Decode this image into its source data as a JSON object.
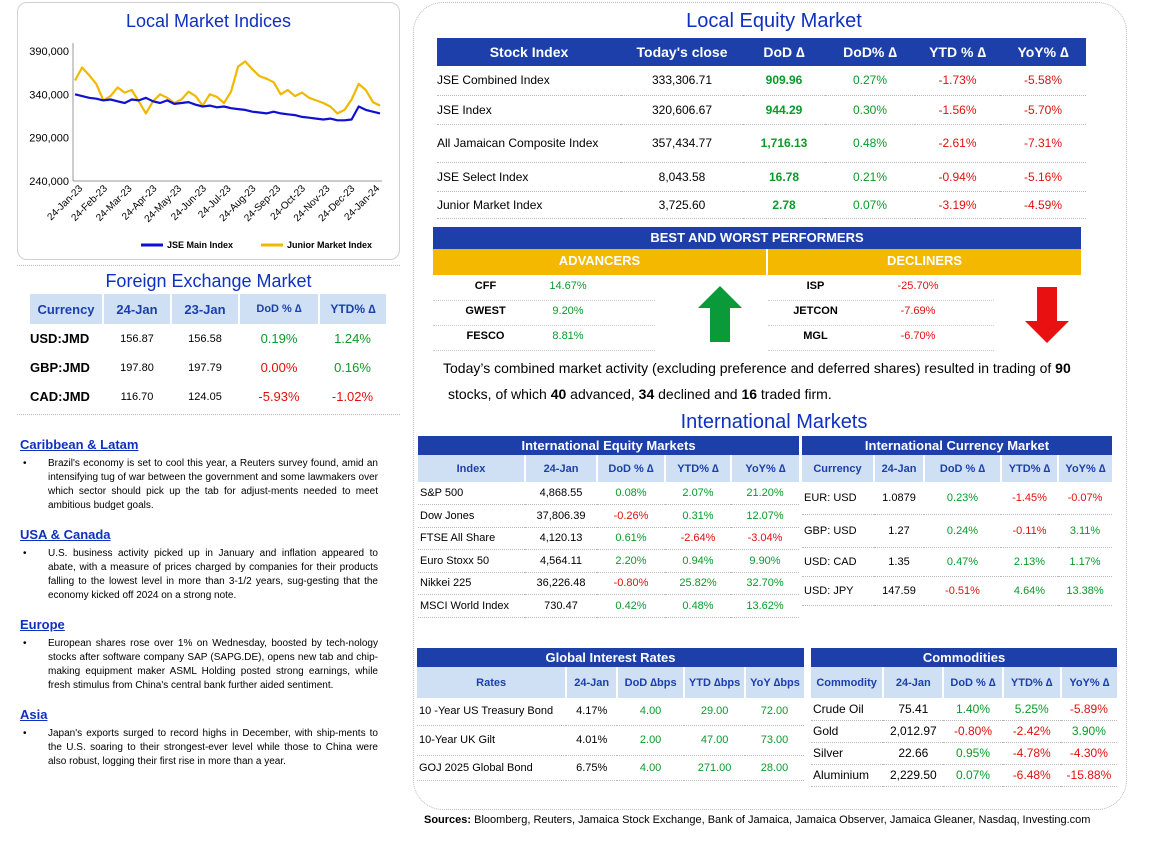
{
  "indices_chart": {
    "title": "Local Market Indices",
    "chart_data": {
      "type": "line",
      "title": "Local Market Indices",
      "yticks": [
        "390,000",
        "340,000",
        "290,000",
        "240,000"
      ],
      "ylim": [
        240000,
        390000
      ],
      "xticks": [
        "24-Jan-23",
        "24-Feb-23",
        "24-Mar-23",
        "24-Apr-23",
        "24-May-23",
        "24-Jun-23",
        "24-Jul-23",
        "24-Aug-23",
        "24-Sep-23",
        "24-Oct-23",
        "24-Nov-23",
        "24-Dec-23",
        "24-Jan-24"
      ],
      "series": [
        {
          "name": "JSE Main Index",
          "color": "#1010d0",
          "values": [
            340000,
            338000,
            336000,
            335000,
            333000,
            334000,
            332000,
            330000,
            334000,
            333000,
            336000,
            332000,
            330000,
            333000,
            329000,
            330000,
            331000,
            328000,
            326000,
            327000,
            325000,
            326000,
            324000,
            323000,
            322000,
            320000,
            319000,
            318000,
            320000,
            318000,
            317000,
            316000,
            314000,
            313000,
            312000,
            311000,
            312000,
            310000,
            310000,
            311000,
            326000,
            322000,
            320000,
            318000
          ]
        },
        {
          "name": "Junior Market Index",
          "color": "#f0b800",
          "values": [
            356000,
            371000,
            362000,
            352000,
            333000,
            338000,
            348000,
            342000,
            345000,
            332000,
            318000,
            332000,
            340000,
            336000,
            330000,
            334000,
            343000,
            338000,
            327000,
            340000,
            337000,
            330000,
            343000,
            372000,
            378000,
            369000,
            361000,
            358000,
            354000,
            340000,
            345000,
            338000,
            342000,
            336000,
            333000,
            330000,
            326000,
            318000,
            322000,
            334000,
            352000,
            345000,
            331000,
            327000
          ]
        }
      ],
      "legend": "bottom"
    }
  },
  "fx": {
    "title": "Foreign Exchange Market",
    "headers": [
      "Currency",
      "24-Jan",
      "23-Jan",
      "DoD % ∆",
      "YTD% ∆"
    ],
    "rows": [
      [
        "USD:JMD",
        "156.87",
        "156.58",
        "0.19%",
        "1.24%"
      ],
      [
        "GBP:JMD",
        "197.80",
        "197.79",
        "0.00%",
        "0.16%"
      ],
      [
        "CAD:JMD",
        "116.70",
        "124.05",
        "-5.93%",
        "-1.02%"
      ]
    ]
  },
  "news": [
    {
      "heading": "Caribbean & Latam",
      "text": "Brazil's economy is set to cool this year, a Reuters survey found, amid an intensifying tug of war between the government and some lawmakers over which sector should pick up the tab for adjust-ments needed to meet ambitious budget goals."
    },
    {
      "heading": "USA & Canada",
      "text": "U.S. business activity picked up in January and inflation appeared to abate, with a measure of prices charged by companies for their products falling to the lowest level in more than 3-1/2 years, sug-gesting that the economy kicked off 2024 on a strong note."
    },
    {
      "heading": "Europe",
      "text": "European shares rose over 1% on Wednesday, boosted by tech-nology stocks after software company SAP (SAPG.DE), opens new tab and chip-making equipment maker ASML Holding posted strong earnings, while fresh stimulus from China's central bank further aided sentiment."
    },
    {
      "heading": "Asia",
      "text": "Japan's exports surged to record highs in December, with ship-ments to the U.S. soaring to their strongest-ever level while those to China were also robust, logging their first rise in more than a year."
    }
  ],
  "bullet": "•",
  "equity": {
    "title": "Local Equity Market",
    "headers": [
      "Stock Index",
      "Today's close",
      "DoD  ∆",
      "DoD% ∆",
      "YTD % ∆",
      "YoY% ∆"
    ],
    "rows": [
      [
        "JSE Combined Index",
        "333,306.71",
        "909.96",
        "0.27%",
        "-1.73%",
        "-5.58%"
      ],
      [
        "JSE Index",
        "320,606.67",
        "944.29",
        "0.30%",
        "-1.56%",
        "-5.70%"
      ],
      [
        "All Jamaican Composite Index",
        "357,434.77",
        "1,716.13",
        "0.48%",
        "-2.61%",
        "-7.31%"
      ],
      [
        "JSE Select Index",
        "8,043.58",
        "16.78",
        "0.21%",
        "-0.94%",
        "-5.16%"
      ],
      [
        "Junior Market Index",
        "3,725.60",
        "2.78",
        "0.07%",
        "-3.19%",
        "-4.59%"
      ]
    ]
  },
  "performers": {
    "title": "BEST AND WORST PERFORMERS",
    "advancers_label": "ADVANCERS",
    "decliners_label": "DECLINERS",
    "advancers": [
      [
        "CFF",
        "14.67%"
      ],
      [
        "GWEST",
        "9.20%"
      ],
      [
        "FESCO",
        "8.81%"
      ]
    ],
    "decliners": [
      [
        "ISP",
        "-25.70%"
      ],
      [
        "JETCON",
        "-7.69%"
      ],
      [
        "MGL",
        "-6.70%"
      ]
    ],
    "summary_1": "Today’s combined market activity (excluding preference and deferred shares) resulted in trading of ",
    "total": "90",
    "summary_2": "stocks, of which ",
    "advanced": "40",
    "summary_3": " advanced, ",
    "declined": "34",
    "summary_4": " declined and ",
    "firm": "16",
    "summary_5": " traded firm."
  },
  "intl": {
    "title": "International Markets",
    "equity": {
      "title": "International Equity Markets",
      "headers": [
        "Index",
        "24-Jan",
        "DoD % ∆",
        "YTD% ∆",
        "YoY% ∆"
      ],
      "rows": [
        [
          "S&P 500",
          "4,868.55",
          "0.08%",
          "2.07%",
          "21.20%"
        ],
        [
          "Dow Jones",
          "37,806.39",
          "-0.26%",
          "0.31%",
          "12.07%"
        ],
        [
          "FTSE All Share",
          "4,120.13",
          "0.61%",
          "-2.64%",
          "-3.04%"
        ],
        [
          "Euro Stoxx 50",
          "4,564.11",
          "2.20%",
          "0.94%",
          "9.90%"
        ],
        [
          "Nikkei 225",
          "36,226.48",
          "-0.80%",
          "25.82%",
          "32.70%"
        ],
        [
          "MSCI World Index",
          "730.47",
          "0.42%",
          "0.48%",
          "13.62%"
        ]
      ]
    },
    "currency": {
      "title": "International Currency Market",
      "headers": [
        "Currency",
        "24-Jan",
        "DoD % ∆",
        "YTD% ∆",
        "YoY% ∆"
      ],
      "rows": [
        [
          "EUR: USD",
          "1.0879",
          "0.23%",
          "-1.45%",
          "-0.07%"
        ],
        [
          "GBP: USD",
          "1.27",
          "0.24%",
          "-0.11%",
          "3.11%"
        ],
        [
          "USD: CAD",
          "1.35",
          "0.47%",
          "2.13%",
          "1.17%"
        ],
        [
          "USD: JPY",
          "147.59",
          "-0.51%",
          "4.64%",
          "13.38%"
        ]
      ]
    },
    "rates": {
      "title": "Global Interest Rates",
      "headers": [
        "Rates",
        "24-Jan",
        "DoD ∆bps",
        "YTD ∆bps",
        "YoY ∆bps"
      ],
      "rows": [
        [
          "10 -Year US Treasury Bond",
          "4.17%",
          "4.00",
          "29.00",
          "72.00"
        ],
        [
          "10-Year UK Gilt",
          "4.01%",
          "2.00",
          "47.00",
          "73.00"
        ],
        [
          "GOJ 2025 Global Bond",
          "6.75%",
          "4.00",
          "271.00",
          "28.00"
        ]
      ]
    },
    "commodities": {
      "title": "Commodities",
      "headers": [
        "Commodity",
        "24-Jan",
        "DoD % ∆",
        "YTD% ∆",
        "YoY% ∆"
      ],
      "rows": [
        [
          "Crude Oil",
          "75.41",
          "1.40%",
          "5.25%",
          "-5.89%"
        ],
        [
          "Gold",
          "2,012.97",
          "-0.80%",
          "-2.42%",
          "3.90%"
        ],
        [
          "Silver",
          "22.66",
          "0.95%",
          "-4.78%",
          "-4.30%"
        ],
        [
          "Aluminium",
          "2,229.50",
          "0.07%",
          "-6.48%",
          "-15.88%"
        ]
      ]
    }
  },
  "sources": {
    "label": "Sources:",
    "text": " Bloomberg, Reuters, Jamaica Stock Exchange, Bank of Jamaica, Jamaica Observer, Jamaica Gleaner, Nasdaq, Investing.com"
  }
}
